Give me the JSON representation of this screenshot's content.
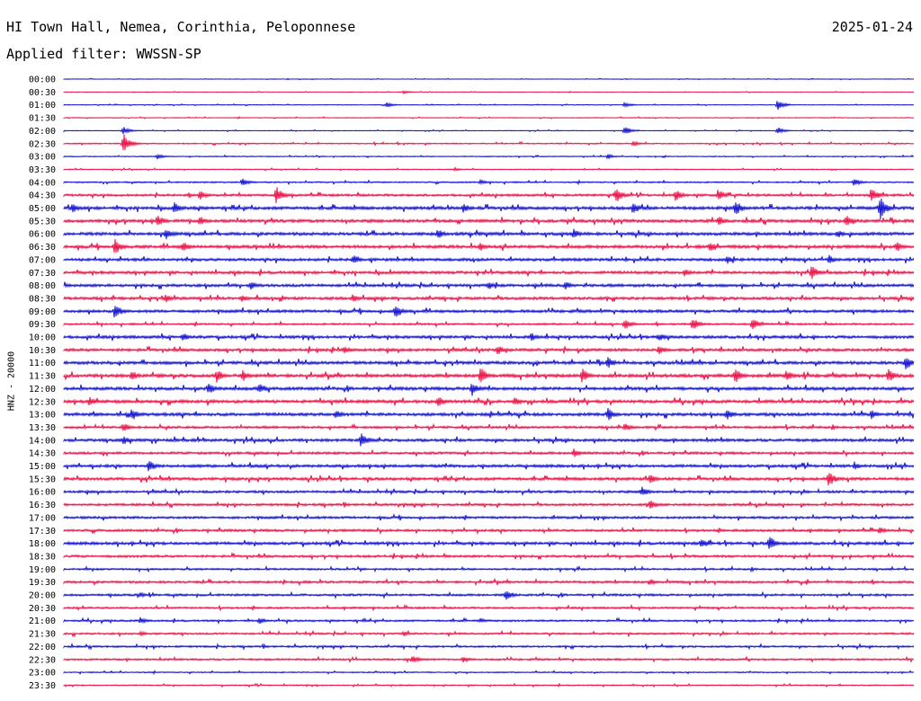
{
  "header": {
    "station": "HI Town Hall, Nemea, Corinthia, Peloponnese",
    "filter": "Applied filter: WWSSN-SP",
    "date": "2025-01-24"
  },
  "chart_data": {
    "type": "line",
    "title": "HI Town Hall, Nemea, Corinthia, Peloponnese",
    "subtitle": "Applied filter: WWSSN-SP",
    "date": "2025-01-24",
    "ylabel": "HNZ - 20000",
    "row_labels": [
      "00:00",
      "00:30",
      "01:00",
      "01:30",
      "02:00",
      "02:30",
      "03:00",
      "03:30",
      "04:00",
      "04:30",
      "05:00",
      "05:30",
      "06:00",
      "06:30",
      "07:00",
      "07:30",
      "08:00",
      "08:30",
      "09:00",
      "09:30",
      "10:00",
      "10:30",
      "11:00",
      "11:30",
      "12:00",
      "12:30",
      "13:00",
      "13:30",
      "14:00",
      "14:30",
      "15:00",
      "15:30",
      "16:00",
      "16:30",
      "17:00",
      "17:30",
      "18:00",
      "18:30",
      "19:00",
      "19:30",
      "20:00",
      "20:30",
      "21:00",
      "21:30",
      "22:00",
      "22:30",
      "23:00",
      "23:30"
    ],
    "series_colors": [
      "#0000cc",
      "#e8003a"
    ],
    "rows": [
      {
        "noise": 0.2,
        "events": []
      },
      {
        "noise": 0.2,
        "events": [
          [
            0.4,
            2
          ]
        ]
      },
      {
        "noise": 0.3,
        "events": [
          [
            0.38,
            3
          ],
          [
            0.66,
            3
          ],
          [
            0.84,
            6
          ]
        ]
      },
      {
        "noise": 0.3,
        "events": []
      },
      {
        "noise": 0.3,
        "events": [
          [
            0.07,
            5
          ],
          [
            0.66,
            5
          ],
          [
            0.84,
            4
          ]
        ]
      },
      {
        "noise": 0.5,
        "events": [
          [
            0.07,
            12
          ],
          [
            0.67,
            3
          ]
        ]
      },
      {
        "noise": 0.4,
        "events": [
          [
            0.11,
            3
          ],
          [
            0.64,
            3
          ]
        ]
      },
      {
        "noise": 0.4,
        "events": [
          [
            0.46,
            2
          ]
        ]
      },
      {
        "noise": 0.6,
        "events": [
          [
            0.21,
            5
          ],
          [
            0.49,
            3
          ],
          [
            0.93,
            5
          ]
        ]
      },
      {
        "noise": 1.0,
        "events": [
          [
            0.16,
            6
          ],
          [
            0.25,
            10
          ],
          [
            0.65,
            9
          ],
          [
            0.72,
            7
          ],
          [
            0.77,
            8
          ],
          [
            0.95,
            9
          ]
        ]
      },
      {
        "noise": 1.3,
        "events": [
          [
            0.01,
            6
          ],
          [
            0.13,
            7
          ],
          [
            0.47,
            6
          ],
          [
            0.67,
            8
          ],
          [
            0.79,
            10
          ],
          [
            0.96,
            14
          ]
        ]
      },
      {
        "noise": 1.3,
        "events": [
          [
            0.11,
            8
          ],
          [
            0.16,
            6
          ],
          [
            0.77,
            6
          ],
          [
            0.92,
            8
          ]
        ]
      },
      {
        "noise": 1.3,
        "events": [
          [
            0.12,
            8
          ],
          [
            0.44,
            6
          ],
          [
            0.6,
            6
          ],
          [
            0.91,
            5
          ]
        ]
      },
      {
        "noise": 1.3,
        "events": [
          [
            0.06,
            10
          ],
          [
            0.14,
            7
          ],
          [
            0.49,
            5
          ],
          [
            0.76,
            6
          ],
          [
            0.98,
            6
          ]
        ]
      },
      {
        "noise": 1.2,
        "events": [
          [
            0.34,
            6
          ],
          [
            0.78,
            5
          ],
          [
            0.9,
            6
          ]
        ]
      },
      {
        "noise": 1.2,
        "events": [
          [
            0.73,
            5
          ],
          [
            0.88,
            9
          ]
        ]
      },
      {
        "noise": 1.2,
        "events": [
          [
            0.22,
            5
          ],
          [
            0.5,
            5
          ],
          [
            0.59,
            5
          ]
        ]
      },
      {
        "noise": 1.2,
        "events": [
          [
            0.12,
            5
          ],
          [
            0.21,
            5
          ],
          [
            0.34,
            5
          ]
        ]
      },
      {
        "noise": 1.2,
        "events": [
          [
            0.06,
            9
          ],
          [
            0.39,
            9
          ]
        ]
      },
      {
        "noise": 0.8,
        "events": [
          [
            0.66,
            7
          ],
          [
            0.74,
            8
          ],
          [
            0.81,
            7
          ]
        ]
      },
      {
        "noise": 1.2,
        "events": [
          [
            0.14,
            5
          ],
          [
            0.55,
            5
          ],
          [
            0.7,
            5
          ]
        ]
      },
      {
        "noise": 1.2,
        "events": [
          [
            0.33,
            5
          ],
          [
            0.51,
            6
          ],
          [
            0.7,
            6
          ]
        ]
      },
      {
        "noise": 1.3,
        "events": [
          [
            0.64,
            7
          ],
          [
            0.99,
            9
          ]
        ]
      },
      {
        "noise": 1.4,
        "events": [
          [
            0.08,
            6
          ],
          [
            0.18,
            8
          ],
          [
            0.21,
            7
          ],
          [
            0.49,
            10
          ],
          [
            0.61,
            9
          ],
          [
            0.79,
            10
          ],
          [
            0.85,
            7
          ],
          [
            0.97,
            9
          ]
        ]
      },
      {
        "noise": 1.3,
        "events": [
          [
            0.17,
            7
          ],
          [
            0.23,
            7
          ],
          [
            0.48,
            9
          ]
        ]
      },
      {
        "noise": 1.3,
        "events": [
          [
            0.03,
            6
          ],
          [
            0.44,
            7
          ],
          [
            0.53,
            6
          ]
        ]
      },
      {
        "noise": 1.3,
        "events": [
          [
            0.08,
            8
          ],
          [
            0.32,
            6
          ],
          [
            0.64,
            8
          ],
          [
            0.78,
            7
          ],
          [
            0.95,
            6
          ]
        ]
      },
      {
        "noise": 1.0,
        "events": [
          [
            0.07,
            6
          ],
          [
            0.66,
            5
          ]
        ]
      },
      {
        "noise": 1.2,
        "events": [
          [
            0.07,
            6
          ],
          [
            0.35,
            9
          ]
        ]
      },
      {
        "noise": 1.0,
        "events": [
          [
            0.6,
            5
          ]
        ]
      },
      {
        "noise": 1.2,
        "events": [
          [
            0.1,
            8
          ],
          [
            0.93,
            5
          ]
        ]
      },
      {
        "noise": 1.2,
        "events": [
          [
            0.69,
            6
          ],
          [
            0.9,
            9
          ]
        ]
      },
      {
        "noise": 1.0,
        "events": [
          [
            0.68,
            6
          ]
        ]
      },
      {
        "noise": 1.0,
        "events": [
          [
            0.69,
            6
          ]
        ]
      },
      {
        "noise": 1.0,
        "events": []
      },
      {
        "noise": 1.0,
        "events": [
          [
            0.96,
            4
          ]
        ]
      },
      {
        "noise": 1.2,
        "events": [
          [
            0.75,
            7
          ],
          [
            0.83,
            9
          ]
        ]
      },
      {
        "noise": 1.0,
        "events": []
      },
      {
        "noise": 0.8,
        "events": []
      },
      {
        "noise": 1.0,
        "events": [
          [
            0.69,
            4
          ]
        ]
      },
      {
        "noise": 0.9,
        "events": [
          [
            0.52,
            7
          ],
          [
            0.09,
            3
          ]
        ]
      },
      {
        "noise": 0.8,
        "events": []
      },
      {
        "noise": 0.8,
        "events": [
          [
            0.09,
            4
          ],
          [
            0.23,
            4
          ],
          [
            0.49,
            3
          ]
        ]
      },
      {
        "noise": 0.8,
        "events": [
          [
            0.09,
            3
          ],
          [
            0.4,
            3
          ]
        ]
      },
      {
        "noise": 0.8,
        "events": []
      },
      {
        "noise": 0.8,
        "events": [
          [
            0.41,
            5
          ],
          [
            0.47,
            4
          ]
        ]
      },
      {
        "noise": 0.5,
        "events": []
      },
      {
        "noise": 0.5,
        "events": []
      }
    ]
  }
}
